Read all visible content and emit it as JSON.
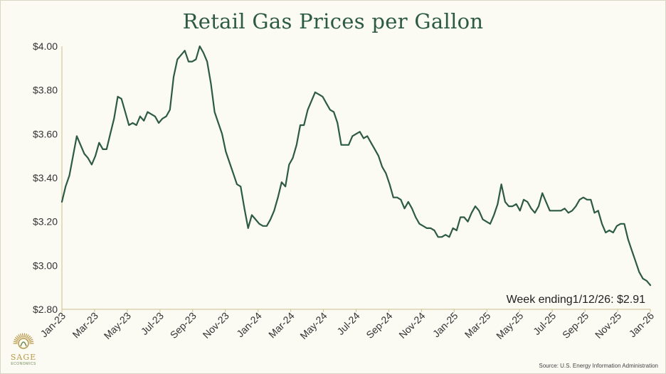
{
  "chart_data": {
    "type": "line",
    "title": "Retail Gas Prices per Gallon",
    "xlabel": "",
    "ylabel": "",
    "ylim": [
      2.8,
      4.0
    ],
    "y_ticks": [
      {
        "value": 4.0,
        "label": "$4.00"
      },
      {
        "value": 3.8,
        "label": "$3.80"
      },
      {
        "value": 3.6,
        "label": "$3.60"
      },
      {
        "value": 3.4,
        "label": "$3.40"
      },
      {
        "value": 3.2,
        "label": "$3.20"
      },
      {
        "value": 3.0,
        "label": "$3.00"
      },
      {
        "value": 2.8,
        "label": "$2.80"
      }
    ],
    "x_tick_labels": [
      "Jan-23",
      "Mar-23",
      "May-23",
      "Jul-23",
      "Sep-23",
      "Nov-23",
      "Jan-24",
      "Mar-24",
      "May-24",
      "Jul-24",
      "Sep-24",
      "Nov-24",
      "Jan-25",
      "Mar-25",
      "May-25",
      "Jul-25",
      "Sep-25",
      "Nov-25",
      "Jan-26"
    ],
    "grid": false,
    "series": [
      {
        "name": "Retail gas price",
        "color": "#2d5a43",
        "values": [
          3.29,
          3.36,
          3.41,
          3.5,
          3.59,
          3.55,
          3.51,
          3.49,
          3.46,
          3.5,
          3.56,
          3.53,
          3.53,
          3.6,
          3.67,
          3.77,
          3.76,
          3.7,
          3.64,
          3.65,
          3.64,
          3.68,
          3.66,
          3.7,
          3.69,
          3.68,
          3.65,
          3.67,
          3.68,
          3.71,
          3.86,
          3.94,
          3.96,
          3.98,
          3.93,
          3.93,
          3.94,
          4.0,
          3.97,
          3.93,
          3.83,
          3.7,
          3.65,
          3.6,
          3.52,
          3.47,
          3.42,
          3.37,
          3.36,
          3.26,
          3.17,
          3.23,
          3.21,
          3.19,
          3.18,
          3.18,
          3.21,
          3.25,
          3.31,
          3.38,
          3.36,
          3.46,
          3.49,
          3.55,
          3.64,
          3.64,
          3.71,
          3.75,
          3.79,
          3.78,
          3.77,
          3.74,
          3.71,
          3.7,
          3.65,
          3.55,
          3.55,
          3.55,
          3.59,
          3.6,
          3.61,
          3.58,
          3.59,
          3.56,
          3.53,
          3.5,
          3.45,
          3.42,
          3.37,
          3.31,
          3.31,
          3.3,
          3.26,
          3.29,
          3.26,
          3.22,
          3.19,
          3.18,
          3.17,
          3.17,
          3.16,
          3.13,
          3.13,
          3.14,
          3.13,
          3.17,
          3.16,
          3.22,
          3.22,
          3.2,
          3.24,
          3.27,
          3.25,
          3.21,
          3.2,
          3.19,
          3.23,
          3.28,
          3.37,
          3.29,
          3.27,
          3.27,
          3.28,
          3.25,
          3.3,
          3.29,
          3.26,
          3.24,
          3.27,
          3.33,
          3.29,
          3.25,
          3.25,
          3.25,
          3.25,
          3.26,
          3.24,
          3.25,
          3.27,
          3.3,
          3.31,
          3.3,
          3.3,
          3.24,
          3.25,
          3.19,
          3.15,
          3.16,
          3.15,
          3.18,
          3.19,
          3.19,
          3.12,
          3.07,
          3.02,
          2.97,
          2.94,
          2.93,
          2.91
        ]
      }
    ],
    "annotation": "Week ending1/12/26: $2.91"
  },
  "source": "Source: U.S. Energy Information Administration",
  "logo": {
    "name": "SAGE",
    "subtitle": "ECONOMICS",
    "colors": {
      "gold": "#b89a4a",
      "green": "#6e8a54"
    }
  },
  "colors": {
    "line": "#2d5a43",
    "title": "#2d5a43",
    "axis": "#c9bd8f",
    "background": "#fbfaf3"
  }
}
